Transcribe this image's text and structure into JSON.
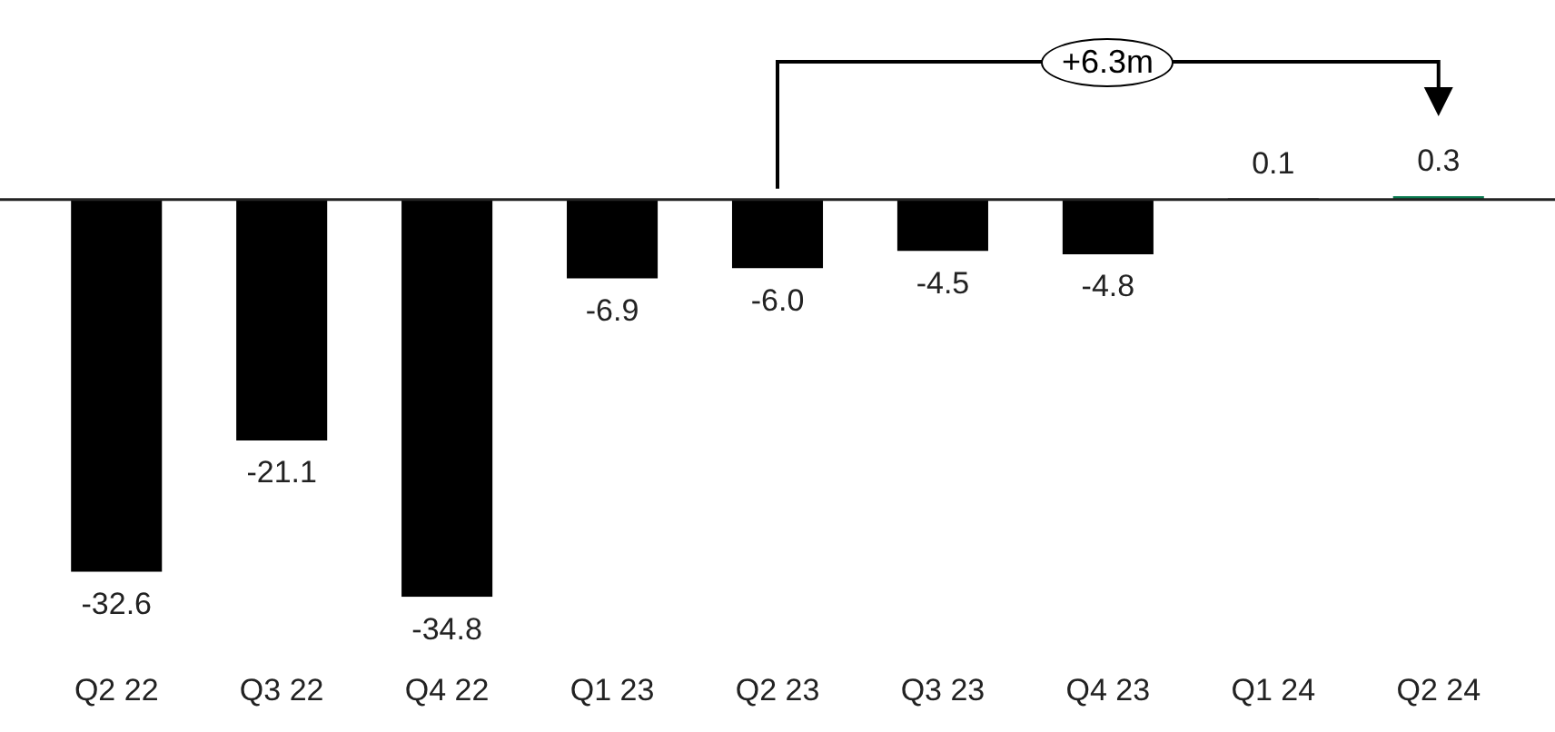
{
  "chart_data": {
    "type": "bar",
    "categories": [
      "Q2 22",
      "Q3 22",
      "Q4 22",
      "Q1 23",
      "Q2 23",
      "Q3 23",
      "Q4 23",
      "Q1 24",
      "Q2 24"
    ],
    "values": [
      -32.6,
      -21.1,
      -34.8,
      -6.9,
      -6.0,
      -4.5,
      -4.8,
      0.1,
      0.3
    ],
    "colors": [
      "#000000",
      "#000000",
      "#000000",
      "#000000",
      "#000000",
      "#000000",
      "#000000",
      "#000000",
      "#0a7a50"
    ],
    "value_labels": [
      "-32.6",
      "-21.1",
      "-34.8",
      "-6.9",
      "-6.0",
      "-4.5",
      "-4.8",
      "0.1",
      "0.3"
    ],
    "legend": false,
    "annotations": [
      "+6.3m"
    ]
  }
}
